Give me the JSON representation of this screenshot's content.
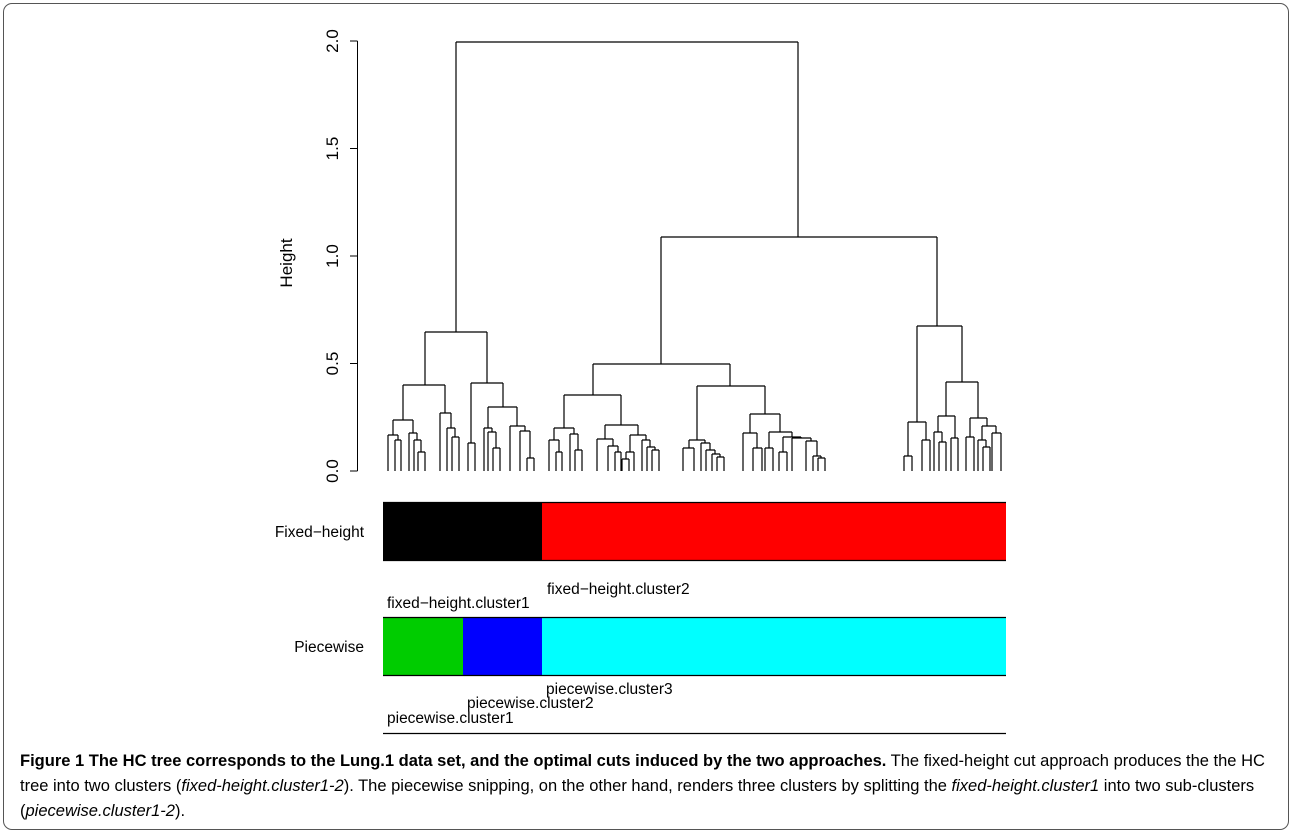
{
  "figure": {
    "ylabel": "Height",
    "yticks": [
      "0.0",
      "0.5",
      "1.0",
      "1.5",
      "2.0"
    ],
    "bars": [
      {
        "label": "Fixed−height",
        "segments": [
          {
            "color": "#000000",
            "label": "fixed−height.cluster1"
          },
          {
            "color": "#ff0000",
            "label": "fixed−height.cluster2"
          }
        ]
      },
      {
        "label": "Piecewise",
        "segments": [
          {
            "color": "#00cc00",
            "label": "piecewise.cluster1"
          },
          {
            "color": "#0000ff",
            "label": "piecewise.cluster2"
          },
          {
            "color": "#00ffff",
            "label": "piecewise.cluster3"
          }
        ]
      }
    ]
  },
  "caption": {
    "title": "Figure 1 The HC tree corresponds to the Lung.1 data set, and the optimal cuts induced by the two approaches.",
    "t1": " The fixed-height cut approach produces the the HC tree into two clusters (",
    "i1": "fixed-height.cluster1-2",
    "t2": "). The piecewise snipping, on the other hand, renders three clusters by splitting the ",
    "i2": "fixed-height.cluster1",
    "t3": " into two sub-clusters (",
    "i3": "piecewise.cluster1-2",
    "t4": ")."
  }
}
